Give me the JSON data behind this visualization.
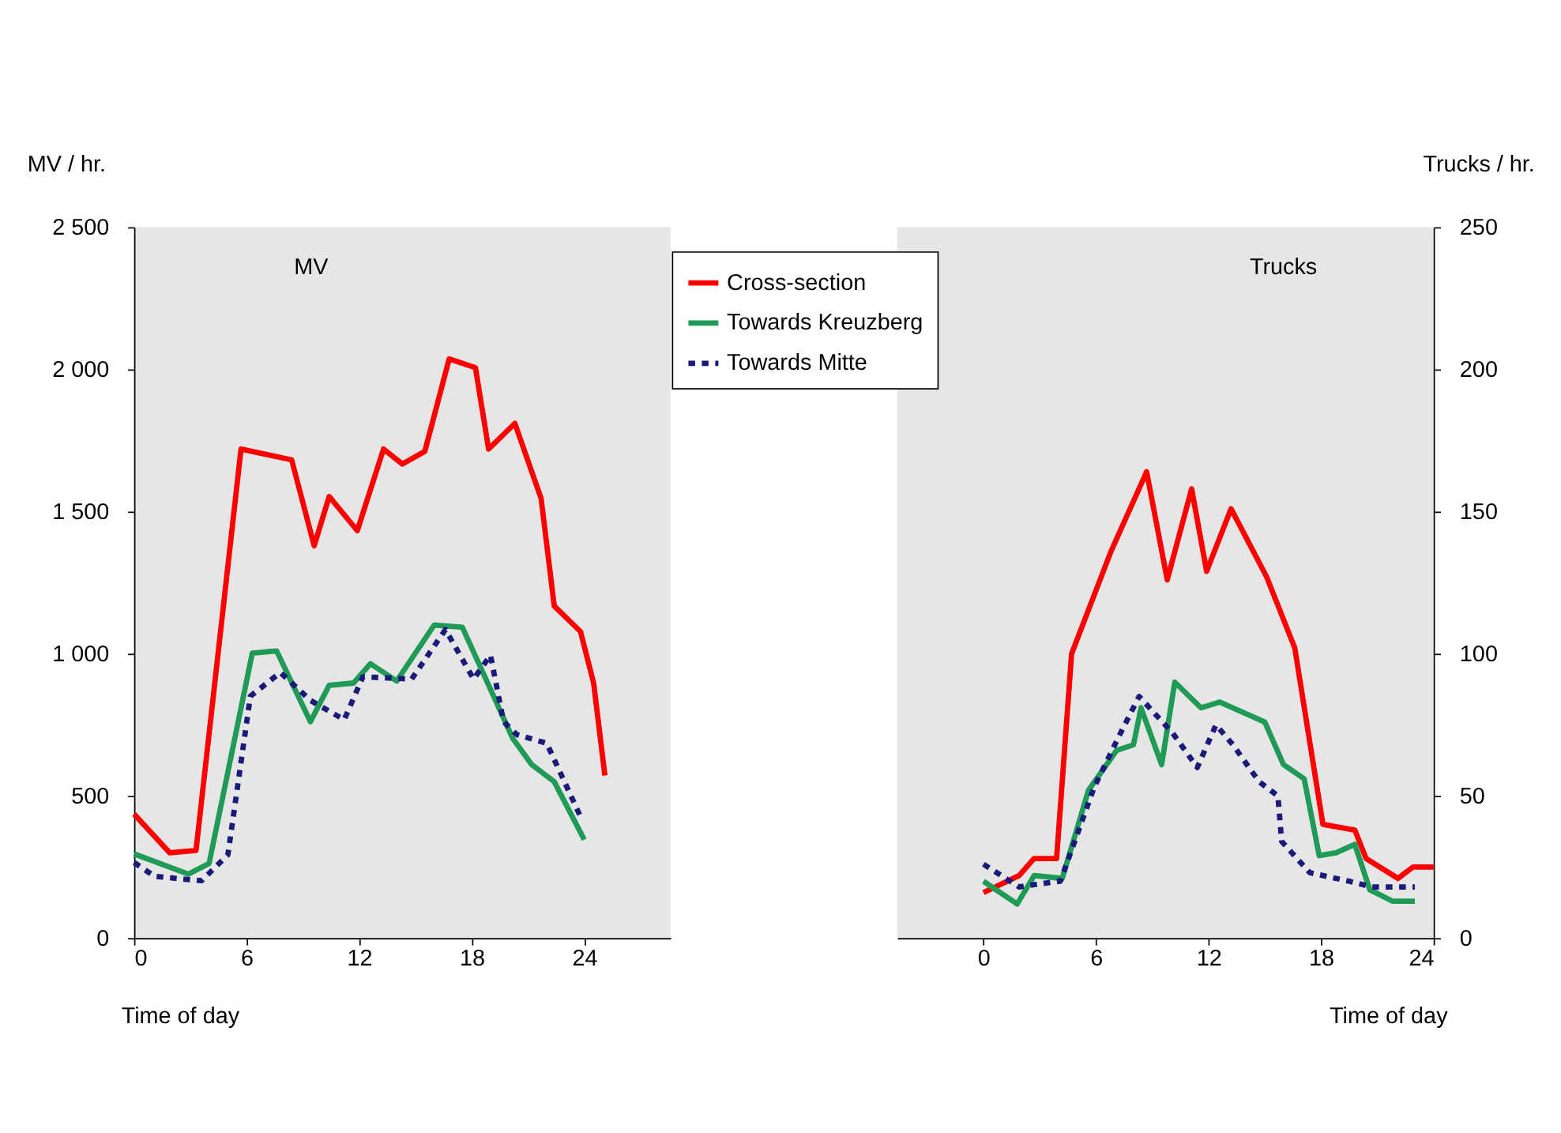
{
  "chart_data": [
    {
      "type": "line",
      "title": "MV",
      "xlabel": "Time of day",
      "ylabel": "MV / hr.",
      "xlim": [
        0,
        28.6
      ],
      "xticks": [
        0,
        6,
        12,
        18,
        24
      ],
      "ylim": [
        0,
        2500
      ],
      "yticks": [
        {
          "value": 0,
          "label": "0"
        },
        {
          "value": 500,
          "label": "500"
        },
        {
          "value": 1000,
          "label": "1 000"
        },
        {
          "value": 1500,
          "label": "1 500"
        },
        {
          "value": 2000,
          "label": "2 000"
        },
        {
          "value": 2500,
          "label": "2 500"
        }
      ],
      "line_style": "solid",
      "series": [
        {
          "color": "#ff0000",
          "x": [
            0,
            1.9,
            3.3,
            5.7,
            8.4,
            9.6,
            10.4,
            11.9,
            13.3,
            14.3,
            15.5,
            16.8,
            18.2,
            18.9,
            20.3,
            21.7,
            22.4,
            23.8,
            24.5,
            25.1
          ],
          "values": [
            436,
            300,
            308,
            1720,
            1682,
            1380,
            1553,
            1433,
            1720,
            1667,
            1712,
            2037,
            2006,
            1720,
            1810,
            1546,
            1168,
            1078,
            897,
            572
          ]
        },
        {
          "color": "#1f9a57",
          "x": [
            0,
            2.9,
            4.0,
            6.3,
            7.6,
            9.4,
            10.4,
            11.7,
            12.6,
            14.0,
            16.0,
            17.5,
            20.2,
            21.2,
            22.4,
            24.0
          ],
          "values": [
            296,
            225,
            263,
            1002,
            1010,
            761,
            889,
            897,
            965,
            904,
            1101,
            1093,
            701,
            610,
            550,
            346
          ]
        },
        {
          "color": "#1a1a7a",
          "line_style": "dotted",
          "x": [
            0,
            1.1,
            3.6,
            5.0,
            6.2,
            7.8,
            9.4,
            11.2,
            12.2,
            14.8,
            16.6,
            18.1,
            19.0,
            19.7,
            20.4,
            22.0,
            23.9
          ],
          "values": [
            266,
            217,
            202,
            293,
            851,
            934,
            836,
            768,
            919,
            911,
            1085,
            911,
            995,
            761,
            716,
            685,
            413
          ]
        }
      ]
    },
    {
      "type": "line",
      "title": "Trucks",
      "xlabel": "Time of day",
      "y2label": "Trucks / hr.",
      "xlim": [
        -4.6,
        24
      ],
      "xticks": [
        0,
        6,
        12,
        18,
        24
      ],
      "y2lim": [
        0,
        250
      ],
      "y2ticks": [
        0,
        50,
        100,
        150,
        200,
        250
      ],
      "legend": "top left",
      "line_style": "solid",
      "series": [
        {
          "name": "Cross-section",
          "axis": "y2",
          "color": "#ff0000",
          "x": [
            0,
            1.9,
            2.7,
            3.9,
            4.7,
            6.8,
            8.7,
            9.8,
            11.1,
            11.9,
            13.2,
            15.1,
            16.6,
            17.3,
            18.1,
            19.8,
            20.4,
            22.1,
            22.9,
            24.0
          ],
          "values": [
            16,
            22,
            28,
            28,
            100,
            136,
            164,
            126,
            158,
            129,
            151,
            127,
            102,
            73,
            40,
            38,
            28,
            21,
            25,
            25
          ]
        },
        {
          "name": "Towards Kreuzberg",
          "axis": "y2",
          "color": "#1f9a57",
          "x": [
            0,
            1.8,
            2.7,
            4.2,
            5.6,
            7.1,
            8.0,
            8.4,
            9.5,
            10.2,
            11.6,
            12.6,
            15.0,
            16.0,
            17.1,
            17.9,
            18.8,
            19.8,
            20.6,
            21.8,
            23.0
          ],
          "values": [
            20,
            12,
            22,
            21,
            52,
            66,
            68,
            81,
            61,
            90,
            81,
            83,
            76,
            61,
            56,
            29,
            30,
            33,
            17,
            13,
            13
          ]
        },
        {
          "name": "Towards Mitte",
          "axis": "y2",
          "color": "#1a1a7a",
          "line_style": "dotted",
          "x": [
            0,
            1.9,
            2.9,
            4.1,
            5.9,
            7.3,
            8.3,
            10.1,
            11.4,
            12.4,
            13.3,
            14.7,
            15.7,
            15.9,
            17.4,
            19.5,
            20.7,
            23.0
          ],
          "values": [
            26,
            18,
            19,
            20,
            53,
            72,
            85,
            72,
            60,
            75,
            68,
            55,
            50,
            34,
            23,
            20,
            18,
            18
          ]
        }
      ]
    }
  ]
}
